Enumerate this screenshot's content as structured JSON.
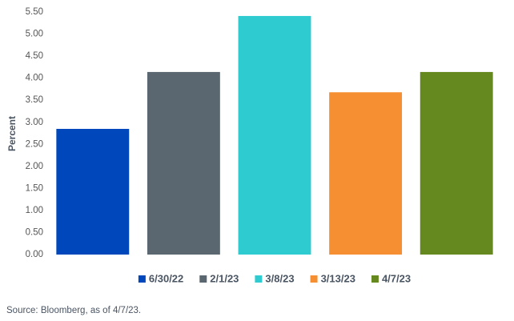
{
  "chart_data": {
    "type": "bar",
    "y_label": "Percent",
    "categories": [
      null
    ],
    "series": [
      {
        "name": "6/30/22",
        "color": "#0047bb",
        "values": [
          2.85
        ]
      },
      {
        "name": "2/1/23",
        "color": "#5b6770",
        "values": [
          4.14
        ]
      },
      {
        "name": "3/8/23",
        "color": "#2ecbd1",
        "values": [
          5.41
        ]
      },
      {
        "name": "3/13/23",
        "color": "#f58f32",
        "values": [
          3.68
        ]
      },
      {
        "name": "4/7/23",
        "color": "#65891e",
        "values": [
          4.14
        ]
      }
    ],
    "ylim": [
      0,
      5.5
    ],
    "yticks": [
      {
        "value": 0,
        "label": "0.00"
      },
      {
        "value": 0.5,
        "label": "0.50"
      },
      {
        "value": 1,
        "label": "1.00"
      },
      {
        "value": 1.5,
        "label": "1.50"
      },
      {
        "value": 2,
        "label": "2.00"
      },
      {
        "value": 2.5,
        "label": "2.50"
      },
      {
        "value": 3,
        "label": "3.00"
      },
      {
        "value": 3.5,
        "label": "3.50"
      },
      {
        "value": 4,
        "label": "4.00"
      },
      {
        "value": 4.5,
        "label": "4.50"
      },
      {
        "value": 5,
        "label": "5.00"
      },
      {
        "value": 5.5,
        "label": "5.50"
      }
    ],
    "grid": false,
    "legend": "bottom",
    "source": "Source: Bloomberg, as of 4/7/23."
  }
}
